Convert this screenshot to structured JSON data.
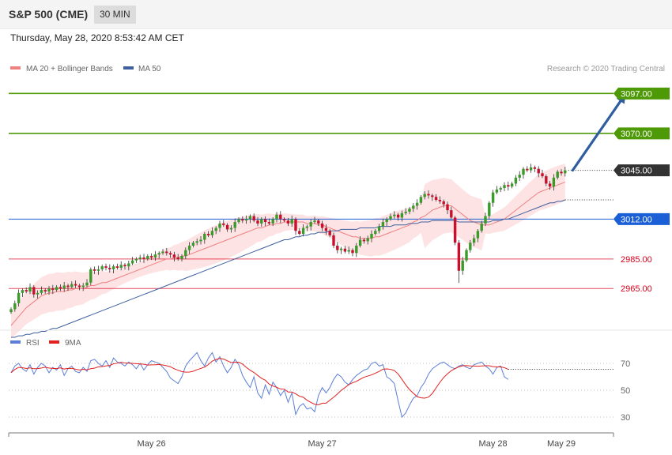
{
  "header": {
    "title": "S&P 500 (CME)",
    "timeframe": "30 MIN",
    "datetime": "Thursday, May 28, 2020 8:53:42 AM CET"
  },
  "legend": {
    "ma20_label": "MA 20 + Bollinger Bands",
    "ma50_label": "MA 50",
    "credit": "Research © 2020 Trading Central"
  },
  "rsi_legend": {
    "rsi_label": "RSI",
    "ma_label": "9MA"
  },
  "colors": {
    "green_level": "#4e9a06",
    "blue_level": "#1a5fd6",
    "red_level": "#d9001b",
    "current_badge": "#333333",
    "ma20": "#f08080",
    "ma50": "#3f5f9f",
    "bollinger_fill": "#fde3e3",
    "arrow": "#2f5d9e",
    "rsi_line": "#5b7fd6",
    "rsi_ma": "#e32020",
    "candle_up": "#3a9a2a",
    "candle_down": "#c8102e"
  },
  "chart_data": {
    "type": "candlestick",
    "y_range": [
      2940,
      3110
    ],
    "levels": [
      {
        "value": 3097.0,
        "label": "3097.00",
        "kind": "resistance"
      },
      {
        "value": 3070.0,
        "label": "3070.00",
        "kind": "resistance"
      },
      {
        "value": 3045.0,
        "label": "3045.00",
        "kind": "current"
      },
      {
        "value": 3012.0,
        "label": "3012.00",
        "kind": "pivot"
      },
      {
        "value": 2985.0,
        "label": "2985.00",
        "kind": "support"
      },
      {
        "value": 2965.0,
        "label": "2965.00",
        "kind": "support"
      }
    ],
    "x_labels": [
      "May 26",
      "May 27",
      "May 28",
      "May 29"
    ],
    "x_label_bars": [
      37,
      82,
      127,
      145
    ],
    "arrow": {
      "from": [
        148,
        3045
      ],
      "to": [
        162,
        3097
      ]
    },
    "closes": [
      2951,
      2955,
      2962,
      2964,
      2963,
      2966,
      2961,
      2962,
      2964,
      2963,
      2965,
      2964,
      2966,
      2965,
      2967,
      2966,
      2968,
      2967,
      2966,
      2967,
      2969,
      2978,
      2977,
      2978,
      2980,
      2979,
      2978,
      2980,
      2979,
      2981,
      2980,
      2982,
      2984,
      2985,
      2986,
      2985,
      2987,
      2986,
      2988,
      2989,
      2990,
      2989,
      2988,
      2986,
      2985,
      2987,
      2991,
      2994,
      2996,
      2997,
      2998,
      3002,
      3001,
      3004,
      3006,
      3009,
      3008,
      3005,
      3006,
      3010,
      3012,
      3011,
      3012,
      3014,
      3011,
      3009,
      3012,
      3010,
      3009,
      3012,
      3015,
      3012,
      3011,
      3009,
      3012,
      3004,
      3002,
      3006,
      3007,
      3010,
      3011,
      3009,
      3006,
      3004,
      3001,
      2994,
      2991,
      2992,
      2990,
      2991,
      2989,
      2994,
      2998,
      2997,
      2999,
      3002,
      3004,
      3007,
      3010,
      3012,
      3014,
      3015,
      3013,
      3016,
      3017,
      3019,
      3021,
      3023,
      3027,
      3029,
      3028,
      3027,
      3025,
      3024,
      3022,
      3018,
      3013,
      2996,
      2977,
      2984,
      2991,
      2996,
      2999,
      3004,
      3009,
      3014,
      3023,
      3030,
      3032,
      3033,
      3035,
      3034,
      3036,
      3040,
      3042,
      3046,
      3045,
      3047,
      3046,
      3043,
      3041,
      3036,
      3034,
      3040,
      3044,
      3043,
      3045
    ],
    "ma20": [
      2940,
      2943,
      2946,
      2949,
      2952,
      2954,
      2956,
      2958,
      2960,
      2961,
      2962,
      2962,
      2963,
      2963,
      2963,
      2964,
      2964,
      2965,
      2965,
      2965,
      2966,
      2967,
      2967,
      2968,
      2969,
      2969,
      2970,
      2971,
      2972,
      2973,
      2974,
      2975,
      2976,
      2977,
      2978,
      2979,
      2980,
      2981,
      2982,
      2983,
      2984,
      2985,
      2985,
      2986,
      2986,
      2987,
      2987,
      2988,
      2989,
      2990,
      2991,
      2992,
      2993,
      2994,
      2995,
      2996,
      2997,
      2998,
      2999,
      3000,
      3001,
      3002,
      3003,
      3004,
      3005,
      3006,
      3006,
      3007,
      3008,
      3008,
      3009,
      3009,
      3010,
      3010,
      3010,
      3010,
      3010,
      3010,
      3009,
      3009,
      3009,
      3008,
      3008,
      3007,
      3006,
      3005,
      3004,
      3003,
      3002,
      3001,
      3000,
      3000,
      2999,
      2999,
      2999,
      2999,
      3000,
      3000,
      3001,
      3002,
      3003,
      3004,
      3005,
      3006,
      3007,
      3008,
      3010,
      3011,
      3013,
      3014,
      3016,
      3018,
      3019,
      3020,
      3021,
      3021,
      3021,
      3019,
      3017,
      3015,
      3013,
      3011,
      3010,
      3009,
      3008,
      3008,
      3008,
      3009,
      3010,
      3011,
      3012,
      3014,
      3016,
      3018,
      3020,
      3022,
      3024,
      3026,
      3028,
      3030,
      3031,
      3032,
      3033,
      3034,
      3035,
      3036,
      3037
    ],
    "ma50": [
      2932,
      2932,
      2933,
      2933,
      2934,
      2934,
      2935,
      2935,
      2936,
      2936,
      2937,
      2938,
      2938,
      2939,
      2940,
      2941,
      2942,
      2943,
      2944,
      2945,
      2946,
      2947,
      2948,
      2949,
      2950,
      2951,
      2952,
      2953,
      2954,
      2955,
      2956,
      2957,
      2958,
      2959,
      2960,
      2961,
      2962,
      2963,
      2964,
      2965,
      2966,
      2967,
      2968,
      2969,
      2970,
      2971,
      2972,
      2973,
      2974,
      2975,
      2976,
      2977,
      2978,
      2979,
      2980,
      2981,
      2982,
      2983,
      2984,
      2985,
      2986,
      2987,
      2988,
      2989,
      2990,
      2991,
      2992,
      2993,
      2994,
      2995,
      2996,
      2997,
      2998,
      2998,
      2999,
      3000,
      3000,
      3001,
      3001,
      3002,
      3002,
      3003,
      3003,
      3003,
      3004,
      3004,
      3004,
      3005,
      3005,
      3005,
      3005,
      3005,
      3006,
      3006,
      3006,
      3006,
      3006,
      3007,
      3007,
      3007,
      3007,
      3008,
      3008,
      3008,
      3008,
      3009,
      3009,
      3009,
      3010,
      3010,
      3010,
      3011,
      3011,
      3011,
      3011,
      3011,
      3011,
      3011,
      3010,
      3010,
      3010,
      3010,
      3010,
      3010,
      3010,
      3010,
      3010,
      3011,
      3011,
      3011,
      3012,
      3012,
      3013,
      3014,
      3015,
      3016,
      3017,
      3018,
      3019,
      3020,
      3021,
      3022,
      3023,
      3023,
      3024,
      3024,
      3025
    ],
    "rsi": {
      "y_range": [
        20,
        80
      ],
      "levels": [
        70,
        50,
        30
      ],
      "values": [
        63,
        68,
        70,
        66,
        64,
        69,
        62,
        67,
        70,
        68,
        63,
        67,
        65,
        69,
        61,
        66,
        68,
        64,
        63,
        67,
        64,
        72,
        73,
        70,
        68,
        72,
        67,
        74,
        71,
        70,
        68,
        71,
        69,
        66,
        70,
        65,
        69,
        72,
        71,
        70,
        67,
        64,
        59,
        57,
        55,
        60,
        68,
        72,
        75,
        78,
        72,
        68,
        74,
        78,
        71,
        75,
        68,
        63,
        67,
        73,
        69,
        61,
        56,
        52,
        60,
        48,
        44,
        54,
        47,
        56,
        52,
        46,
        50,
        41,
        48,
        32,
        38,
        40,
        36,
        37,
        34,
        46,
        52,
        48,
        52,
        58,
        62,
        60,
        56,
        54,
        58,
        61,
        63,
        65,
        66,
        70,
        71,
        68,
        69,
        60,
        58,
        55,
        42,
        30,
        33,
        39,
        44,
        46,
        52,
        56,
        62,
        66,
        68,
        70,
        71,
        69,
        67,
        66,
        68,
        69,
        67,
        66,
        69,
        70,
        71,
        68,
        66,
        62,
        67,
        68,
        60,
        58
      ]
    }
  }
}
